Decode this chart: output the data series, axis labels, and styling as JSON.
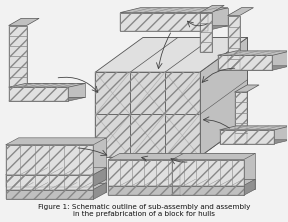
{
  "bg": "#f2f2f2",
  "lc": "#555555",
  "lc2": "#888888",
  "fc_light": "#e0e0e0",
  "fc_mid": "#c0c0c0",
  "fc_dark": "#909090",
  "fc_hatch": "#b0b0b0",
  "ac": "#444444",
  "title": "Figure 1: Schematic outline of sub-assembly and assembly\nin the prefabrication of a block for hulls",
  "title_fs": 5.2
}
